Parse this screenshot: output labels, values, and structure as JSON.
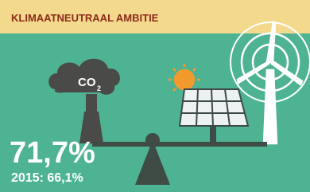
{
  "header": {
    "title": "KLIMAATNEUTRAAL AMBITIE"
  },
  "illustration": {
    "cloud_text": "CO",
    "cloud_subscript": "2"
  },
  "stat": {
    "value": "71,7%",
    "previous": "2015: 66,1%"
  }
}
